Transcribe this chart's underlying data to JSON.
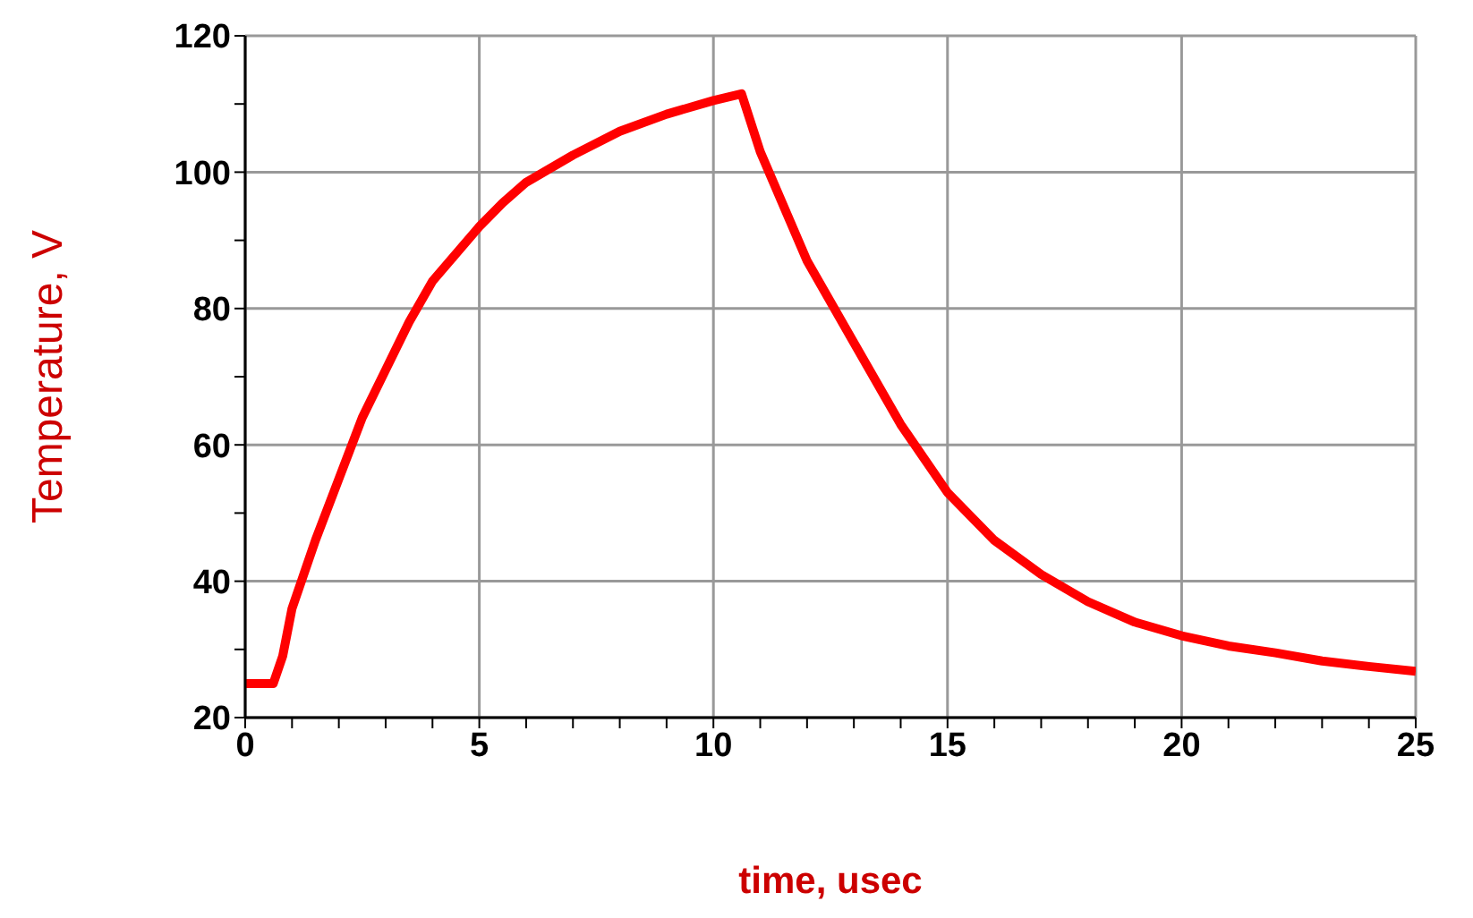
{
  "chart_data": {
    "type": "line",
    "xlabel": "time, usec",
    "ylabel": "Temperature, V",
    "x": [
      0,
      0.6,
      0.8,
      1,
      1.5,
      2,
      2.5,
      3,
      3.5,
      4,
      4.5,
      5,
      5.5,
      6,
      7,
      8,
      9,
      10,
      10.6,
      11,
      11.5,
      12,
      13,
      14,
      15,
      16,
      17,
      18,
      19,
      20,
      21,
      22,
      23,
      24,
      25
    ],
    "series": [
      {
        "color": "#ff0000",
        "values": [
          25,
          25,
          29,
          36,
          46,
          55,
          64,
          71,
          78,
          84,
          88,
          92,
          95.5,
          98.5,
          102.5,
          106,
          108.5,
          110.5,
          111.5,
          103,
          95,
          87,
          75,
          63,
          53,
          46,
          41,
          37,
          34,
          32,
          30.5,
          29.5,
          28.3,
          27.5,
          26.8
        ]
      }
    ],
    "xlim": [
      0,
      25
    ],
    "ylim": [
      20,
      120
    ],
    "xticks": [
      0,
      {
        "value": 1,
        "label": null
      },
      {
        "value": 2,
        "label": null
      },
      {
        "value": 3,
        "label": null
      },
      {
        "value": 4,
        "label": null
      },
      5,
      {
        "value": 6,
        "label": null
      },
      {
        "value": 7,
        "label": null
      },
      {
        "value": 8,
        "label": null
      },
      {
        "value": 9,
        "label": null
      },
      10,
      {
        "value": 11,
        "label": null
      },
      {
        "value": 12,
        "label": null
      },
      {
        "value": 13,
        "label": null
      },
      {
        "value": 14,
        "label": null
      },
      15,
      {
        "value": 16,
        "label": null
      },
      {
        "value": 17,
        "label": null
      },
      {
        "value": 18,
        "label": null
      },
      {
        "value": 19,
        "label": null
      },
      20,
      {
        "value": 21,
        "label": null
      },
      {
        "value": 22,
        "label": null
      },
      {
        "value": 23,
        "label": null
      },
      {
        "value": 24,
        "label": null
      },
      25
    ],
    "yticks": [
      20,
      {
        "value": 30,
        "label": null
      },
      40,
      {
        "value": 50,
        "label": null
      },
      60,
      {
        "value": 70,
        "label": null
      },
      80,
      {
        "value": 90,
        "label": null
      },
      100,
      {
        "value": 110,
        "label": null
      },
      120
    ],
    "grid": true,
    "marker": "none",
    "line_style": "solid"
  }
}
